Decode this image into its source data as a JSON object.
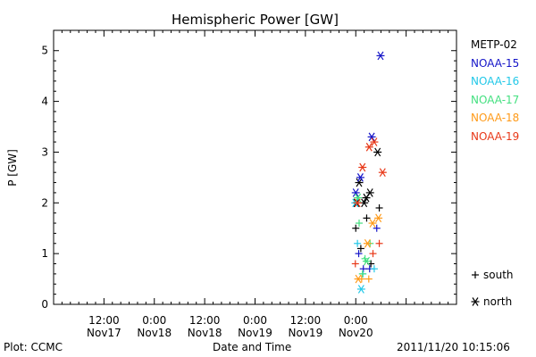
{
  "chart_data": {
    "type": "scatter",
    "title": "Hemispheric Power [GW]",
    "ylabel": "P [GW]",
    "xlabel": "Date and Time",
    "ylim": [
      0,
      5.4
    ],
    "xlim_hours": [
      -84,
      12
    ],
    "yticks": [
      0,
      1,
      2,
      3,
      4,
      5
    ],
    "xtick_labels": [
      {
        "hour": -72,
        "top": "12:00",
        "bottom": "Nov17"
      },
      {
        "hour": -60,
        "top": "0:00",
        "bottom": "Nov18"
      },
      {
        "hour": -48,
        "top": "12:00",
        "bottom": "Nov18"
      },
      {
        "hour": -36,
        "top": "0:00",
        "bottom": "Nov19"
      },
      {
        "hour": -24,
        "top": "12:00",
        "bottom": "Nov19"
      },
      {
        "hour": -12,
        "top": "0:00",
        "bottom": "Nov20"
      }
    ],
    "series": [
      {
        "name": "METP-02",
        "color": "#000000",
        "points": [
          {
            "h": -11.8,
            "p": 2.0,
            "s": "north"
          },
          {
            "h": -11.2,
            "p": 2.4,
            "s": "north"
          },
          {
            "h": -10.0,
            "p": 2.0,
            "s": "north"
          },
          {
            "h": -9.5,
            "p": 2.1,
            "s": "north"
          },
          {
            "h": -8.6,
            "p": 2.2,
            "s": "north"
          },
          {
            "h": -6.8,
            "p": 3.0,
            "s": "north"
          },
          {
            "h": -12.0,
            "p": 1.5,
            "s": "south"
          },
          {
            "h": -10.8,
            "p": 1.1,
            "s": "south"
          },
          {
            "h": -9.4,
            "p": 1.7,
            "s": "south"
          },
          {
            "h": -8.4,
            "p": 0.8,
            "s": "south"
          },
          {
            "h": -6.4,
            "p": 1.9,
            "s": "south"
          }
        ]
      },
      {
        "name": "NOAA-15",
        "color": "#1515c8",
        "points": [
          {
            "h": -12.0,
            "p": 2.2,
            "s": "north"
          },
          {
            "h": -10.9,
            "p": 2.5,
            "s": "north"
          },
          {
            "h": -8.2,
            "p": 3.3,
            "s": "north"
          },
          {
            "h": -6.1,
            "p": 4.9,
            "s": "north"
          },
          {
            "h": -11.3,
            "p": 1.0,
            "s": "south"
          },
          {
            "h": -10.2,
            "p": 0.7,
            "s": "south"
          },
          {
            "h": -8.7,
            "p": 0.7,
            "s": "south"
          },
          {
            "h": -7.0,
            "p": 1.5,
            "s": "south"
          }
        ]
      },
      {
        "name": "NOAA-16",
        "color": "#22c8e8",
        "points": [
          {
            "h": -12.1,
            "p": 2.0,
            "s": "north"
          },
          {
            "h": -10.7,
            "p": 0.3,
            "s": "north"
          },
          {
            "h": -11.6,
            "p": 1.2,
            "s": "south"
          },
          {
            "h": -10.3,
            "p": 0.6,
            "s": "south"
          },
          {
            "h": -7.6,
            "p": 0.7,
            "s": "south"
          }
        ]
      },
      {
        "name": "NOAA-17",
        "color": "#44e080",
        "points": [
          {
            "h": -11.5,
            "p": 2.1,
            "s": "north"
          },
          {
            "h": -9.4,
            "p": 0.85,
            "s": "north"
          },
          {
            "h": -11.2,
            "p": 1.6,
            "s": "south"
          },
          {
            "h": -10.4,
            "p": 0.6,
            "s": "south"
          },
          {
            "h": -9.8,
            "p": 0.9,
            "s": "south"
          },
          {
            "h": -8.6,
            "p": 1.2,
            "s": "south"
          }
        ]
      },
      {
        "name": "NOAA-18",
        "color": "#ff9a18",
        "points": [
          {
            "h": -11.4,
            "p": 0.5,
            "s": "north"
          },
          {
            "h": -9.2,
            "p": 1.2,
            "s": "north"
          },
          {
            "h": -8.0,
            "p": 1.6,
            "s": "north"
          },
          {
            "h": -6.6,
            "p": 1.7,
            "s": "north"
          },
          {
            "h": -10.6,
            "p": 0.5,
            "s": "south"
          },
          {
            "h": -8.9,
            "p": 0.5,
            "s": "south"
          }
        ]
      },
      {
        "name": "NOAA-19",
        "color": "#e83818",
        "points": [
          {
            "h": -11.6,
            "p": 2.0,
            "s": "north"
          },
          {
            "h": -10.4,
            "p": 2.7,
            "s": "north"
          },
          {
            "h": -8.8,
            "p": 3.1,
            "s": "north"
          },
          {
            "h": -7.6,
            "p": 3.2,
            "s": "north"
          },
          {
            "h": -5.6,
            "p": 2.6,
            "s": "north"
          },
          {
            "h": -12.1,
            "p": 0.8,
            "s": "south"
          },
          {
            "h": -7.9,
            "p": 1.0,
            "s": "south"
          },
          {
            "h": -6.4,
            "p": 1.2,
            "s": "south"
          }
        ]
      }
    ],
    "marker_legend": [
      {
        "symbol": "+",
        "label": "south"
      },
      {
        "symbol": "*",
        "label": "north"
      }
    ]
  },
  "footer": {
    "left": "Plot: CCMC",
    "center": "Date and Time",
    "right": "2011/11/20  10:15:06"
  }
}
